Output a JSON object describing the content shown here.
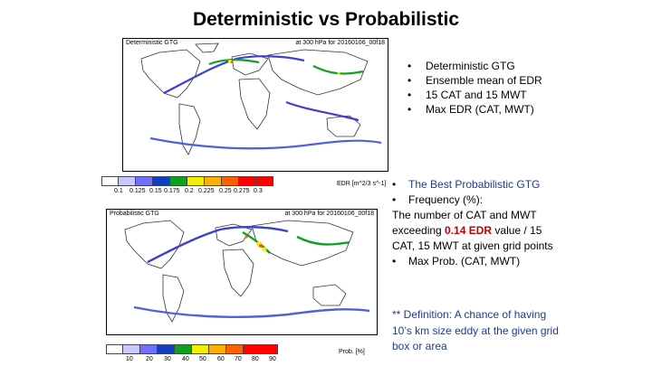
{
  "slide": {
    "title": "Deterministic vs Probabilistic"
  },
  "top_panel": {
    "title_left": "Deterministic GTG",
    "title_right": "at 300 hPa for 20160106_00f18",
    "colorbar_ticks": [
      "0.1",
      "0.125",
      "0.15",
      "0.175",
      "0.2",
      "0.225",
      "0.25",
      "0.275",
      "0.3"
    ],
    "colorbar_unit": "EDR [m^2/3 s^-1]",
    "colors": [
      "#ffffff",
      "#c8c8ff",
      "#7070ff",
      "#1040c0",
      "#10a020",
      "#f0f000",
      "#ffb000",
      "#ff6000",
      "#ff0000"
    ]
  },
  "bottom_panel": {
    "title_left": "Probabilistic GTG",
    "title_right": "at 300 hPa for 20160106_00f18",
    "colorbar_ticks": [
      "10",
      "20",
      "30",
      "40",
      "50",
      "60",
      "70",
      "80",
      "90"
    ],
    "colorbar_unit": "Prob. [%]",
    "colors": [
      "#ffffff",
      "#c8c8ff",
      "#7070ff",
      "#1040c0",
      "#10a020",
      "#f0f000",
      "#ffb000",
      "#ff6000",
      "#ff0000"
    ]
  },
  "bullets_top": [
    "Deterministic GTG",
    "Ensemble mean of EDR",
    "15 CAT and 15 MWT",
    "Max EDR (CAT, MWT)"
  ],
  "block2": {
    "line1": "The Best Probabilistic GTG",
    "line2": "Frequency (%):",
    "line3a": "The number of CAT and MWT exceeding ",
    "edr": "0.14 EDR",
    "line3b": " value / 15 CAT, 15 MWT at given grid points",
    "line4": "Max Prob. (CAT, MWT)"
  },
  "definition": "** Definition: A chance of having 10’s km size eddy at the given grid box or area"
}
